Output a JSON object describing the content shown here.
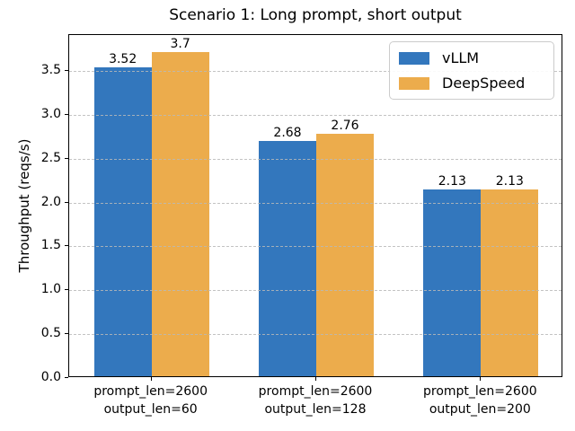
{
  "chart_data": {
    "type": "bar",
    "title": "Scenario 1: Long prompt, short output",
    "ylabel": "Throughput (reqs/s)",
    "xlabel": "",
    "categories": [
      [
        "prompt_len=2600",
        "output_len=60"
      ],
      [
        "prompt_len=2600",
        "output_len=128"
      ],
      [
        "prompt_len=2600",
        "output_len=200"
      ]
    ],
    "series": [
      {
        "name": "vLLM",
        "color": "#3377bd",
        "values": [
          3.52,
          2.68,
          2.13
        ],
        "value_labels": [
          "3.52",
          "2.68",
          "2.13"
        ]
      },
      {
        "name": "DeepSpeed",
        "color": "#ecac4c",
        "values": [
          3.7,
          2.76,
          2.13
        ],
        "value_labels": [
          "3.7",
          "2.76",
          "2.13"
        ]
      }
    ],
    "yticks": [
      "0.0",
      "0.5",
      "1.0",
      "1.5",
      "2.0",
      "2.5",
      "3.0",
      "3.5"
    ],
    "ytick_values": [
      0.0,
      0.5,
      1.0,
      1.5,
      2.0,
      2.5,
      3.0,
      3.5
    ],
    "ylim": [
      0,
      3.91
    ],
    "grid": "horizontal-dashed",
    "legend_position": "upper right"
  }
}
